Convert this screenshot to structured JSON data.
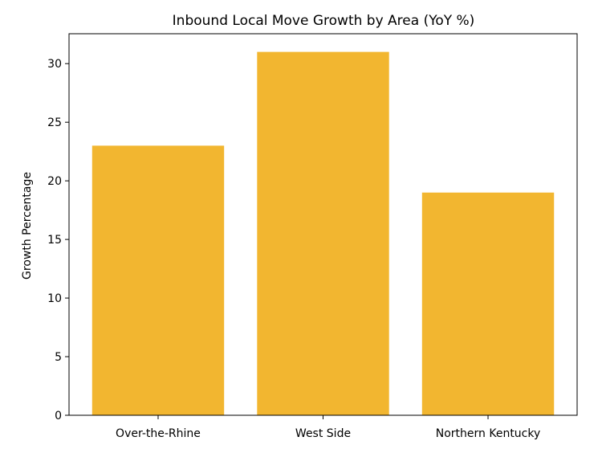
{
  "chart_data": {
    "type": "bar",
    "title": "Inbound Local Move Growth by Area (YoY %)",
    "xlabel": "",
    "ylabel": "Growth Percentage",
    "categories": [
      "Over-the-Rhine",
      "West Side",
      "Northern Kentucky"
    ],
    "values": [
      23,
      31,
      19
    ],
    "ylim": [
      0,
      32.55
    ],
    "yticks": [
      0,
      5,
      10,
      15,
      20,
      25,
      30
    ],
    "grid": false,
    "legend": "none",
    "bar_color": "#f2b630"
  }
}
